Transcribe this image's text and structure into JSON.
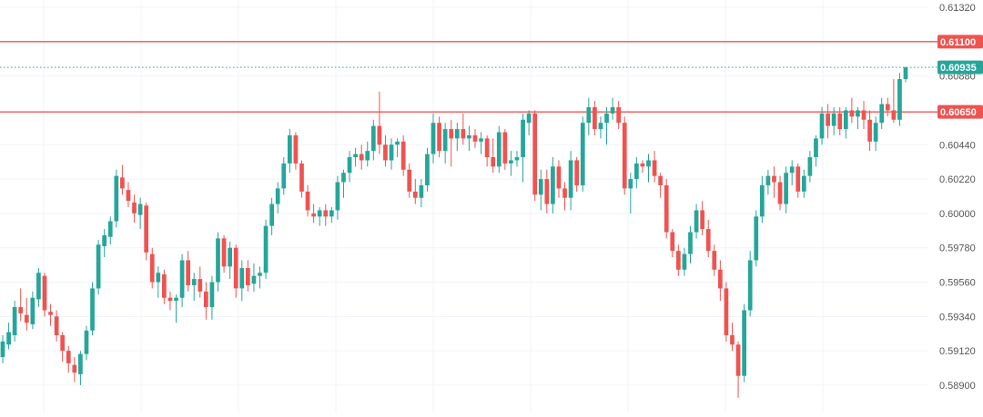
{
  "chart_data": {
    "type": "candlestick",
    "grid": true,
    "y_axis_position": "right",
    "ylim": [
      0.588,
      0.6135
    ],
    "y_ticks": [
      0.6132,
      0.6088,
      0.6044,
      0.6022,
      0.6,
      0.5978,
      0.5956,
      0.5934,
      0.5912,
      0.589
    ],
    "y_tick_labels": [
      "0.61320",
      "0.60880",
      "0.60440",
      "0.60220",
      "0.60000",
      "0.59780",
      "0.59560",
      "0.59340",
      "0.59120",
      "0.58900"
    ],
    "colors": {
      "up": "#26a69a",
      "down": "#ef5350",
      "level": "#ef5350",
      "current": "#26a69a",
      "grid": "#f0f3fa",
      "tick_text": "#555555"
    },
    "horizontal_lines": [
      {
        "value": 0.611,
        "label": "0.61100",
        "color": "#ef5350",
        "style": "solid"
      },
      {
        "value": 0.60935,
        "label": "0.60935",
        "color": "#26a69a",
        "style": "dotted"
      },
      {
        "value": 0.6065,
        "label": "0.60650",
        "color": "#ef5350",
        "style": "solid"
      }
    ],
    "candles": [
      [
        0.5908,
        0.5922,
        0.5904,
        0.5918
      ],
      [
        0.5916,
        0.593,
        0.5913,
        0.5924
      ],
      [
        0.5922,
        0.5944,
        0.5918,
        0.594
      ],
      [
        0.594,
        0.5952,
        0.5931,
        0.5936
      ],
      [
        0.5935,
        0.5946,
        0.5925,
        0.593
      ],
      [
        0.5929,
        0.595,
        0.5926,
        0.5946
      ],
      [
        0.5945,
        0.5965,
        0.594,
        0.5962
      ],
      [
        0.596,
        0.5962,
        0.5934,
        0.5938
      ],
      [
        0.5937,
        0.5942,
        0.5928,
        0.5935
      ],
      [
        0.5934,
        0.5938,
        0.5918,
        0.5922
      ],
      [
        0.5922,
        0.5924,
        0.5905,
        0.5912
      ],
      [
        0.5912,
        0.5915,
        0.5898,
        0.5904
      ],
      [
        0.5903,
        0.5908,
        0.5892,
        0.5898
      ],
      [
        0.5897,
        0.5912,
        0.589,
        0.591
      ],
      [
        0.591,
        0.5928,
        0.5906,
        0.5925
      ],
      [
        0.5925,
        0.5956,
        0.5922,
        0.5952
      ],
      [
        0.5952,
        0.5983,
        0.5948,
        0.598
      ],
      [
        0.5979,
        0.599,
        0.5972,
        0.5986
      ],
      [
        0.5985,
        0.5998,
        0.598,
        0.5995
      ],
      [
        0.5995,
        0.6028,
        0.5991,
        0.6024
      ],
      [
        0.6023,
        0.6031,
        0.6012,
        0.6016
      ],
      [
        0.6015,
        0.602,
        0.6004,
        0.6008
      ],
      [
        0.6007,
        0.6012,
        0.5994,
        0.6
      ],
      [
        0.5999,
        0.601,
        0.599,
        0.6006
      ],
      [
        0.6005,
        0.6007,
        0.597,
        0.5975
      ],
      [
        0.5974,
        0.5978,
        0.5952,
        0.5956
      ],
      [
        0.5956,
        0.5966,
        0.5946,
        0.5962
      ],
      [
        0.5961,
        0.5964,
        0.5942,
        0.5946
      ],
      [
        0.5946,
        0.595,
        0.5938,
        0.5944
      ],
      [
        0.5944,
        0.5948,
        0.593,
        0.5946
      ],
      [
        0.5946,
        0.5974,
        0.594,
        0.597
      ],
      [
        0.597,
        0.5976,
        0.595,
        0.5954
      ],
      [
        0.5954,
        0.5962,
        0.5944,
        0.5958
      ],
      [
        0.5958,
        0.5966,
        0.5946,
        0.595
      ],
      [
        0.595,
        0.5956,
        0.5932,
        0.594
      ],
      [
        0.594,
        0.596,
        0.5932,
        0.5956
      ],
      [
        0.5956,
        0.5988,
        0.595,
        0.5984
      ],
      [
        0.5984,
        0.5986,
        0.5962,
        0.5966
      ],
      [
        0.5966,
        0.5982,
        0.5958,
        0.5978
      ],
      [
        0.5978,
        0.598,
        0.5946,
        0.5952
      ],
      [
        0.5952,
        0.597,
        0.5944,
        0.5965
      ],
      [
        0.5965,
        0.597,
        0.595,
        0.5954
      ],
      [
        0.5955,
        0.5968,
        0.595,
        0.596
      ],
      [
        0.596,
        0.5966,
        0.5952,
        0.5962
      ],
      [
        0.5962,
        0.5996,
        0.5958,
        0.5992
      ],
      [
        0.5992,
        0.601,
        0.5986,
        0.6006
      ],
      [
        0.6006,
        0.602,
        0.6,
        0.6016
      ],
      [
        0.6016,
        0.6036,
        0.6012,
        0.6032
      ],
      [
        0.6032,
        0.6054,
        0.6026,
        0.605
      ],
      [
        0.605,
        0.6052,
        0.6028,
        0.6032
      ],
      [
        0.6032,
        0.6034,
        0.601,
        0.6014
      ],
      [
        0.6014,
        0.6018,
        0.5998,
        0.6002
      ],
      [
        0.6,
        0.6006,
        0.5994,
        0.5998
      ],
      [
        0.5998,
        0.6004,
        0.5992,
        0.6002
      ],
      [
        0.6002,
        0.6006,
        0.5992,
        0.5998
      ],
      [
        0.5998,
        0.6004,
        0.5994,
        0.6002
      ],
      [
        0.6002,
        0.6024,
        0.5996,
        0.602
      ],
      [
        0.602,
        0.6028,
        0.601,
        0.6026
      ],
      [
        0.6026,
        0.604,
        0.602,
        0.6036
      ],
      [
        0.6036,
        0.6042,
        0.603,
        0.6038
      ],
      [
        0.6038,
        0.6044,
        0.6028,
        0.6034
      ],
      [
        0.6034,
        0.6046,
        0.603,
        0.604
      ],
      [
        0.604,
        0.606,
        0.6034,
        0.6056
      ],
      [
        0.6056,
        0.6078,
        0.6038,
        0.6044
      ],
      [
        0.6044,
        0.605,
        0.603,
        0.6034
      ],
      [
        0.6034,
        0.6048,
        0.6028,
        0.6044
      ],
      [
        0.6044,
        0.6048,
        0.6036,
        0.6046
      ],
      [
        0.6046,
        0.605,
        0.6024,
        0.6028
      ],
      [
        0.6028,
        0.6032,
        0.601,
        0.6014
      ],
      [
        0.6014,
        0.6022,
        0.6006,
        0.601
      ],
      [
        0.601,
        0.6022,
        0.6004,
        0.6018
      ],
      [
        0.6018,
        0.6042,
        0.6014,
        0.6038
      ],
      [
        0.6038,
        0.6064,
        0.6032,
        0.6058
      ],
      [
        0.6058,
        0.6062,
        0.6036,
        0.604
      ],
      [
        0.604,
        0.6058,
        0.6032,
        0.6054
      ],
      [
        0.6054,
        0.606,
        0.603,
        0.6048
      ],
      [
        0.6048,
        0.6058,
        0.604,
        0.6054
      ],
      [
        0.6054,
        0.6064,
        0.6044,
        0.6048
      ],
      [
        0.6048,
        0.6056,
        0.604,
        0.605
      ],
      [
        0.605,
        0.6054,
        0.6042,
        0.6046
      ],
      [
        0.6046,
        0.6052,
        0.6038,
        0.6048
      ],
      [
        0.6048,
        0.605,
        0.603,
        0.6036
      ],
      [
        0.6036,
        0.6048,
        0.6026,
        0.603
      ],
      [
        0.603,
        0.6056,
        0.6026,
        0.6052
      ],
      [
        0.6052,
        0.6054,
        0.6028,
        0.6032
      ],
      [
        0.6032,
        0.604,
        0.6024,
        0.6034
      ],
      [
        0.6034,
        0.604,
        0.603,
        0.6036
      ],
      [
        0.6036,
        0.6064,
        0.602,
        0.606
      ],
      [
        0.6058,
        0.6066,
        0.605,
        0.6064
      ],
      [
        0.6064,
        0.6066,
        0.6008,
        0.6012
      ],
      [
        0.6012,
        0.6028,
        0.6002,
        0.6022
      ],
      [
        0.6022,
        0.6028,
        0.6,
        0.6006
      ],
      [
        0.6006,
        0.6036,
        0.6,
        0.603
      ],
      [
        0.603,
        0.6034,
        0.601,
        0.6016
      ],
      [
        0.6016,
        0.602,
        0.6002,
        0.601
      ],
      [
        0.601,
        0.604,
        0.6002,
        0.6034
      ],
      [
        0.6034,
        0.6036,
        0.6014,
        0.6018
      ],
      [
        0.6018,
        0.6062,
        0.6014,
        0.6058
      ],
      [
        0.6058,
        0.6074,
        0.605,
        0.6068
      ],
      [
        0.6068,
        0.6072,
        0.605,
        0.6054
      ],
      [
        0.6054,
        0.6062,
        0.6048,
        0.6058
      ],
      [
        0.6058,
        0.6068,
        0.6044,
        0.6064
      ],
      [
        0.6064,
        0.6074,
        0.606,
        0.6068
      ],
      [
        0.6068,
        0.6072,
        0.6054,
        0.6058
      ],
      [
        0.6058,
        0.6062,
        0.6012,
        0.6016
      ],
      [
        0.6016,
        0.6026,
        0.6,
        0.6022
      ],
      [
        0.6022,
        0.6036,
        0.6016,
        0.6032
      ],
      [
        0.6032,
        0.6034,
        0.6026,
        0.603
      ],
      [
        0.603,
        0.6038,
        0.602,
        0.6034
      ],
      [
        0.6034,
        0.604,
        0.602,
        0.6024
      ],
      [
        0.6024,
        0.6026,
        0.601,
        0.6018
      ],
      [
        0.6018,
        0.6022,
        0.5984,
        0.5988
      ],
      [
        0.5988,
        0.599,
        0.5972,
        0.5976
      ],
      [
        0.5976,
        0.598,
        0.596,
        0.5964
      ],
      [
        0.5964,
        0.5978,
        0.596,
        0.5974
      ],
      [
        0.5974,
        0.5992,
        0.5968,
        0.5988
      ],
      [
        0.5988,
        0.6006,
        0.5984,
        0.6002
      ],
      [
        0.6002,
        0.6008,
        0.5986,
        0.599
      ],
      [
        0.599,
        0.5996,
        0.5972,
        0.5976
      ],
      [
        0.5976,
        0.598,
        0.596,
        0.5964
      ],
      [
        0.5964,
        0.597,
        0.5944,
        0.5952
      ],
      [
        0.5952,
        0.5956,
        0.5918,
        0.5922
      ],
      [
        0.5922,
        0.593,
        0.5912,
        0.5916
      ],
      [
        0.5916,
        0.5918,
        0.5882,
        0.5896
      ],
      [
        0.5896,
        0.5942,
        0.5892,
        0.5938
      ],
      [
        0.5938,
        0.5976,
        0.5934,
        0.597
      ],
      [
        0.597,
        0.6002,
        0.5966,
        0.5998
      ],
      [
        0.5998,
        0.6024,
        0.5994,
        0.6018
      ],
      [
        0.6018,
        0.6028,
        0.6012,
        0.6024
      ],
      [
        0.6024,
        0.603,
        0.601,
        0.602
      ],
      [
        0.602,
        0.6024,
        0.6002,
        0.6006
      ],
      [
        0.6006,
        0.603,
        0.6,
        0.6026
      ],
      [
        0.6026,
        0.6034,
        0.6018,
        0.603
      ],
      [
        0.603,
        0.6032,
        0.601,
        0.6014
      ],
      [
        0.6014,
        0.6028,
        0.601,
        0.6024
      ],
      [
        0.6024,
        0.604,
        0.602,
        0.6036
      ],
      [
        0.6036,
        0.605,
        0.603,
        0.6048
      ],
      [
        0.6048,
        0.6068,
        0.6044,
        0.6064
      ],
      [
        0.6064,
        0.607,
        0.6048,
        0.6056
      ],
      [
        0.6056,
        0.6068,
        0.605,
        0.6064
      ],
      [
        0.6064,
        0.6068,
        0.605,
        0.6054
      ],
      [
        0.6054,
        0.6068,
        0.6048,
        0.6066
      ],
      [
        0.6066,
        0.6074,
        0.6058,
        0.6062
      ],
      [
        0.6062,
        0.6068,
        0.6054,
        0.6066
      ],
      [
        0.6066,
        0.6072,
        0.6054,
        0.606
      ],
      [
        0.606,
        0.6066,
        0.604,
        0.6046
      ],
      [
        0.6046,
        0.6062,
        0.604,
        0.6058
      ],
      [
        0.6058,
        0.6074,
        0.6054,
        0.607
      ],
      [
        0.607,
        0.6074,
        0.6062,
        0.6066
      ],
      [
        0.6066,
        0.6086,
        0.6058,
        0.606
      ],
      [
        0.606,
        0.609,
        0.6056,
        0.6086
      ],
      [
        0.6086,
        0.6094,
        0.6084,
        0.60935
      ]
    ]
  }
}
